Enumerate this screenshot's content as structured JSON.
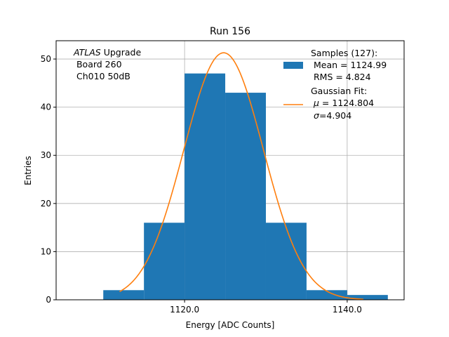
{
  "chart_data": {
    "type": "bar",
    "title": "Run 156",
    "xlabel": "Energy [ADC Counts]",
    "ylabel": "Entries",
    "xlim": [
      1104.2,
      1147.0
    ],
    "ylim": [
      0,
      53.8
    ],
    "xticks": [
      1120.0,
      1140.0
    ],
    "xtick_labels": [
      "1120.0",
      "1140.0"
    ],
    "yticks": [
      0,
      10,
      20,
      30,
      40,
      50
    ],
    "ytick_labels": [
      "0",
      "10",
      "20",
      "30",
      "40",
      "50"
    ],
    "grid": true,
    "histogram": {
      "bin_edges": [
        1110,
        1115,
        1120,
        1125,
        1130,
        1135,
        1140,
        1145
      ],
      "counts": [
        2,
        16,
        47,
        43,
        16,
        2,
        1
      ],
      "color": "#1f77b4"
    },
    "fit": {
      "mu": 1124.804,
      "sigma": 4.904,
      "peak": 51.3,
      "x_range": [
        1112,
        1142
      ],
      "color": "#ff7f0e"
    },
    "annotation": {
      "line1_italic": "ATLAS",
      "line1_rest": " Upgrade",
      "line2": " Board 260",
      "line3": " Ch010 50dB"
    },
    "legend": {
      "placement": "top-right",
      "samples_line1": "Samples (127):",
      "samples_line2": " Mean = 1124.99",
      "samples_line3": " RMS = 4.824",
      "fit_line1": "Gaussian Fit:",
      "fit_line2_symbol": "μ",
      "fit_line2_rest": " = 1124.804",
      "fit_line3_symbol": "σ",
      "fit_line3_rest": "=4.904"
    }
  }
}
